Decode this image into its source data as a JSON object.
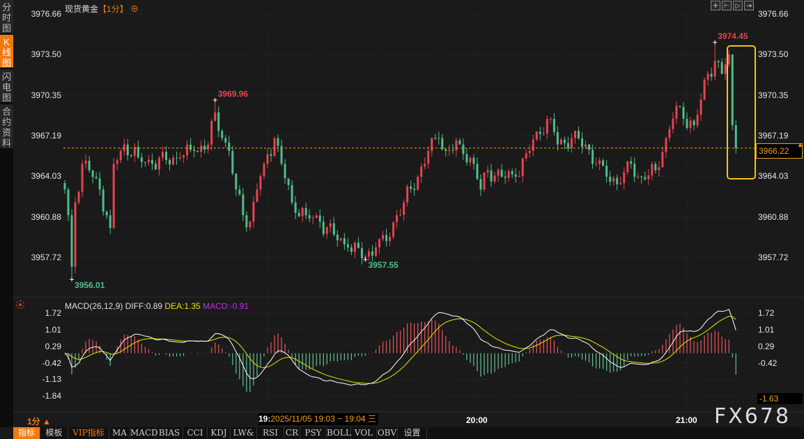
{
  "sidebar": {
    "items": [
      {
        "label": "分时图",
        "active": false
      },
      {
        "label": "K线图",
        "active": true
      },
      {
        "label": "闪电图",
        "active": false
      },
      {
        "label": "合约资料",
        "active": false
      }
    ]
  },
  "header": {
    "instrument": "现货黄金",
    "period": "【1分】",
    "add_icon": "crosshair-plus-icon"
  },
  "toolbar": {
    "icons": [
      "crosshair-icon",
      "zoom-range-icon",
      "play-icon",
      "jump-end-icon"
    ]
  },
  "price_axis": {
    "ticks": [
      "3976.66",
      "3973.50",
      "3970.35",
      "3967.19",
      "3964.03",
      "3960.88",
      "3957.72"
    ],
    "current": "3966.22"
  },
  "annotations": [
    {
      "label": "3969.96",
      "time": "18:45",
      "type": "high",
      "color": "#e8434f"
    },
    {
      "label": "3956.01",
      "time": "18:04",
      "type": "low",
      "color": "#4fbf8a"
    },
    {
      "label": "3957.55",
      "time": "19:28",
      "type": "low",
      "color": "#4fbf8a"
    },
    {
      "label": "3974.45",
      "time": "21:08",
      "type": "high",
      "color": "#e8434f"
    }
  ],
  "macd": {
    "title": "MACD(26,12,9)",
    "diff": "DIFF:0.89",
    "dea": "DEA:1.35",
    "macd": "MACD:-0.91",
    "ticks": [
      "1.72",
      "1.01",
      "0.29",
      "-0.42",
      "-1.13",
      "-1.84"
    ],
    "current": "-1.63",
    "colors": {
      "diff": "#ffffff",
      "dea": "#e6e600",
      "macd": "#c030e0"
    }
  },
  "time_axis": {
    "period": "1分 ▲",
    "crosshair_hour": "19:",
    "crosshair_label": "2025/11/05 19:03 ~ 19:04 三",
    "labels": [
      "20:00",
      "21:00"
    ]
  },
  "watermark": "FX678",
  "bottom_tabs": [
    {
      "label": "指标",
      "active": true
    },
    {
      "label": "模板"
    },
    {
      "label": "VIP指标",
      "vip": true
    },
    {
      "label": "MA"
    },
    {
      "label": "MACD"
    },
    {
      "label": "BIAS"
    },
    {
      "label": "CCI"
    },
    {
      "label": "KDJ"
    },
    {
      "label": "LW&"
    },
    {
      "label": "RSI"
    },
    {
      "label": "CR"
    },
    {
      "label": "PSY"
    },
    {
      "label": "BOLL"
    },
    {
      "label": "VOL"
    },
    {
      "label": "OBV"
    },
    {
      "label": "设置"
    }
  ],
  "colors": {
    "up": "#e8434f",
    "down": "#4fbf8a",
    "accent": "#f07a10",
    "highlight": "#f7c21a"
  },
  "chart_data": {
    "type": "candlestick",
    "interval": "1min",
    "ylim": [
      3955.5,
      3976.66
    ],
    "close_path": [
      [
        "18:02",
        3963
      ],
      [
        "18:03",
        3961
      ],
      [
        "18:04",
        3957
      ],
      [
        "18:05",
        3962
      ],
      [
        "18:07",
        3965
      ],
      [
        "18:09",
        3964.5
      ],
      [
        "18:12",
        3963
      ],
      [
        "18:14",
        3961
      ],
      [
        "18:15",
        3960
      ],
      [
        "18:16",
        3965
      ],
      [
        "18:18",
        3966
      ],
      [
        "18:19",
        3966.5
      ],
      [
        "18:23",
        3965.5
      ],
      [
        "18:27",
        3965
      ],
      [
        "18:31",
        3965.3
      ],
      [
        "18:35",
        3965.5
      ],
      [
        "18:39",
        3966
      ],
      [
        "18:43",
        3966.5
      ],
      [
        "18:45",
        3969
      ],
      [
        "18:47",
        3967
      ],
      [
        "18:49",
        3966
      ],
      [
        "18:51",
        3963
      ],
      [
        "18:53",
        3961
      ],
      [
        "18:55",
        3960.5
      ],
      [
        "18:57",
        3963
      ],
      [
        "18:59",
        3965
      ],
      [
        "19:02",
        3967
      ],
      [
        "19:04",
        3965
      ],
      [
        "19:07",
        3962
      ],
      [
        "19:11",
        3961
      ],
      [
        "19:15",
        3960.5
      ],
      [
        "19:19",
        3959.5
      ],
      [
        "19:23",
        3958.5
      ],
      [
        "19:28",
        3957.8
      ],
      [
        "19:31",
        3958.5
      ],
      [
        "19:34",
        3959
      ],
      [
        "19:37",
        3961
      ],
      [
        "19:39",
        3962
      ],
      [
        "19:43",
        3964
      ],
      [
        "19:46",
        3966
      ],
      [
        "19:49",
        3967
      ],
      [
        "19:51",
        3966
      ],
      [
        "19:55",
        3966.5
      ],
      [
        "19:59",
        3965
      ],
      [
        "20:01",
        3963
      ],
      [
        "20:03",
        3964.5
      ],
      [
        "20:07",
        3964
      ],
      [
        "20:11",
        3964
      ],
      [
        "20:15",
        3966
      ],
      [
        "20:17",
        3967.5
      ],
      [
        "20:21",
        3968.5
      ],
      [
        "20:23",
        3966.5
      ],
      [
        "20:27",
        3967
      ],
      [
        "20:31",
        3966.5
      ],
      [
        "20:34",
        3965
      ],
      [
        "20:37",
        3964
      ],
      [
        "20:41",
        3963.5
      ],
      [
        "20:44",
        3965
      ],
      [
        "20:46",
        3964
      ],
      [
        "20:48",
        3963.8
      ],
      [
        "20:51",
        3964.5
      ],
      [
        "20:54",
        3967
      ],
      [
        "20:57",
        3969.5
      ],
      [
        "20:59",
        3968.5
      ],
      [
        "21:02",
        3968
      ],
      [
        "21:04",
        3970
      ],
      [
        "21:06",
        3972
      ],
      [
        "21:08",
        3973
      ],
      [
        "21:10",
        3972
      ],
      [
        "21:12",
        3973.5
      ],
      [
        "21:13",
        3968
      ],
      [
        "21:14",
        3966.22
      ]
    ]
  }
}
